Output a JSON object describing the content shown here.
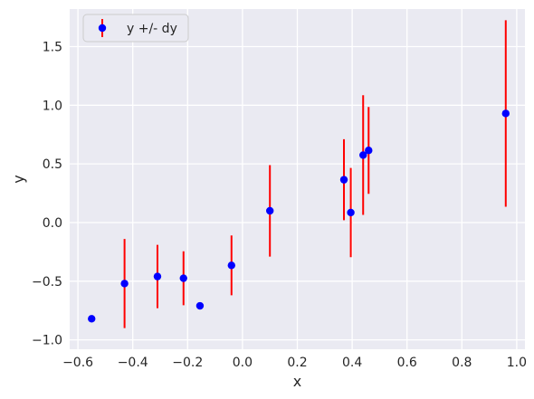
{
  "chart_data": {
    "type": "scatter",
    "title": "",
    "xlabel": "x",
    "ylabel": "y",
    "xlim": [
      -0.63,
      1.03
    ],
    "ylim": [
      -1.08,
      1.82
    ],
    "xticks": [
      -0.6,
      -0.4,
      -0.2,
      0.0,
      0.2,
      0.4,
      0.6,
      0.8,
      1.0
    ],
    "yticks": [
      -1.0,
      -0.5,
      0.0,
      0.5,
      1.0,
      1.5
    ],
    "xtick_labels": [
      "−0.6",
      "−0.4",
      "−0.2",
      "0.0",
      "0.2",
      "0.4",
      "0.6",
      "0.8",
      "1.0"
    ],
    "ytick_labels": [
      "−1.0",
      "−0.5",
      "0.0",
      "0.5",
      "1.0",
      "1.5"
    ],
    "grid": true,
    "legend_position": "top-left",
    "background_color": "#eaeaf2",
    "series": [
      {
        "name": "y +/- dy",
        "marker_color": "#0000ff",
        "errorbar_color": "#ff0000",
        "points": [
          {
            "x": -0.55,
            "y": -0.82,
            "dy": 0.0
          },
          {
            "x": -0.43,
            "y": -0.52,
            "dy": 0.38
          },
          {
            "x": -0.31,
            "y": -0.46,
            "dy": 0.27
          },
          {
            "x": -0.215,
            "y": -0.475,
            "dy": 0.23
          },
          {
            "x": -0.155,
            "y": -0.71,
            "dy": 0.0
          },
          {
            "x": -0.04,
            "y": -0.365,
            "dy": 0.255
          },
          {
            "x": 0.1,
            "y": 0.1,
            "dy": 0.39
          },
          {
            "x": 0.37,
            "y": 0.365,
            "dy": 0.345
          },
          {
            "x": 0.395,
            "y": 0.085,
            "dy": 0.38
          },
          {
            "x": 0.44,
            "y": 0.575,
            "dy": 0.51
          },
          {
            "x": 0.46,
            "y": 0.615,
            "dy": 0.37
          },
          {
            "x": 0.96,
            "y": 0.93,
            "dy": 0.795
          }
        ]
      }
    ]
  }
}
